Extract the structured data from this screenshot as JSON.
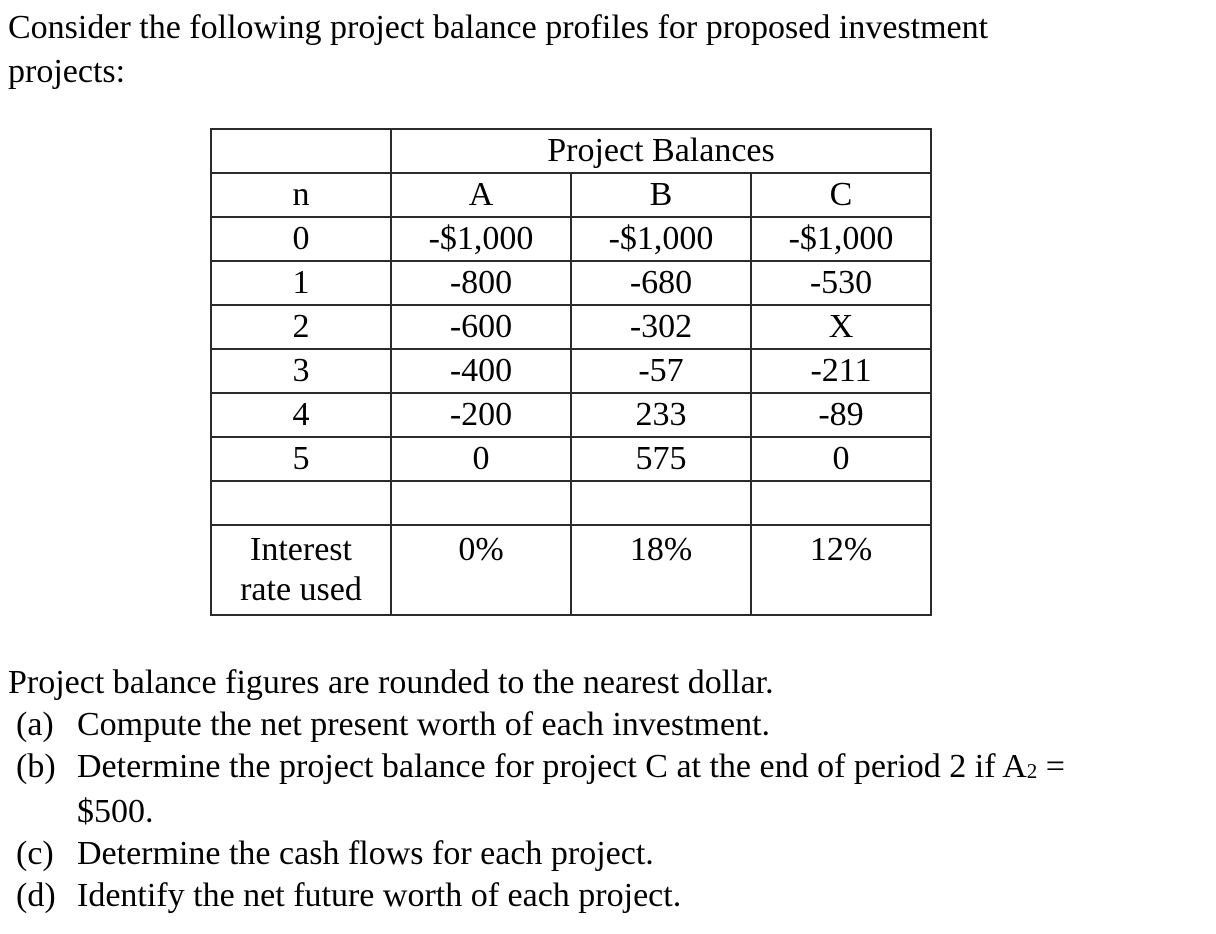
{
  "page": {
    "background_color": "#ffffff",
    "text_color": "#000000",
    "table_border_color": "#2b2b2b"
  },
  "intro_lines": [
    "Consider the following project balance profiles for proposed investment",
    "projects:"
  ],
  "table": {
    "spanning_header": "Project Balances",
    "column_headers": [
      "n",
      "A",
      "B",
      "C"
    ],
    "rows": [
      [
        "0",
        "-$1,000",
        "-$1,000",
        "-$1,000"
      ],
      [
        "1",
        "-800",
        "-680",
        "-530"
      ],
      [
        "2",
        "-600",
        "-302",
        "X"
      ],
      [
        "3",
        "-400",
        "-57",
        "-211"
      ],
      [
        "4",
        "-200",
        "233",
        "-89"
      ],
      [
        "5",
        "0",
        "575",
        "0"
      ]
    ],
    "interest_row": {
      "label_lines": [
        "Interest",
        "rate used"
      ],
      "values": [
        "0%",
        "18%",
        "12%"
      ]
    }
  },
  "note": "Project balance figures are rounded to the nearest dollar.",
  "questions": [
    {
      "marker": "(a)",
      "text": "Compute the net present worth of each investment."
    },
    {
      "marker": "(b)",
      "pre": "Determine the project balance for project C at the end of period 2 if A",
      "sub": "2",
      "post": " =",
      "line2": "$500."
    },
    {
      "marker": "(c)",
      "text": "Determine the cash flows for each project."
    },
    {
      "marker": "(d)",
      "text": "Identify the net future worth of each project."
    }
  ]
}
